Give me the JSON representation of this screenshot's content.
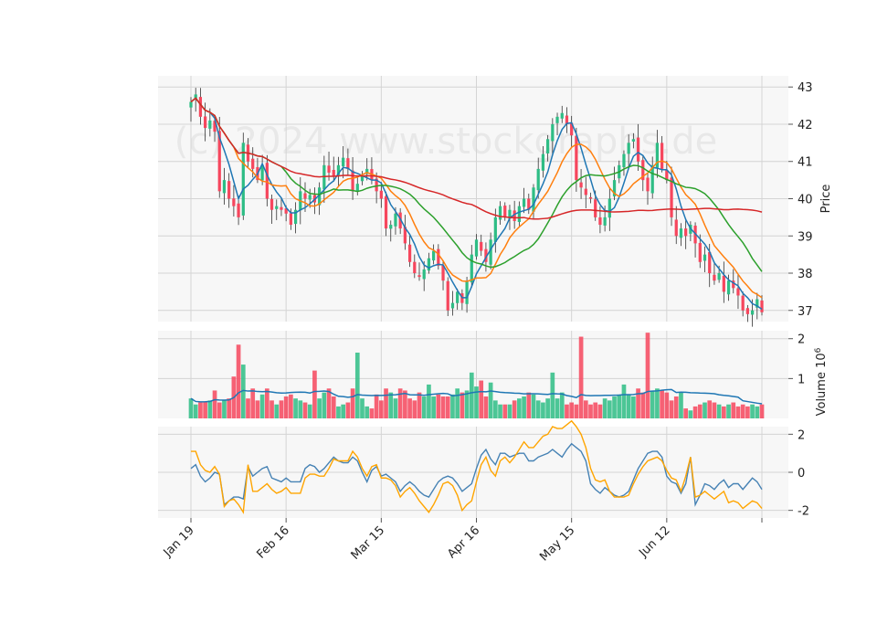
{
  "watermark": "(c) 2024 www.stockgraphs.de",
  "chart_data": [
    {
      "type": "candlestick",
      "panel": "price",
      "ylabel": "Price",
      "ylim": [
        36.7,
        43.3
      ],
      "yticks": [
        37,
        38,
        39,
        40,
        41,
        42,
        43
      ],
      "xticks": [
        {
          "label": "Jan 19",
          "index": 0
        },
        {
          "label": "Feb 16",
          "index": 20
        },
        {
          "label": "Mar 15",
          "index": 40
        },
        {
          "label": "Apr 16",
          "index": 60
        },
        {
          "label": "May 15",
          "index": 80
        },
        {
          "label": "Jun 12",
          "index": 100
        },
        {
          "label": "",
          "index": 120
        }
      ],
      "grid": true,
      "up_color": "#2ebd85",
      "down_color": "#f6465d",
      "close": [
        42.6,
        42.8,
        42.2,
        41.9,
        42.1,
        41.8,
        40.2,
        40.5,
        40.0,
        39.8,
        39.5,
        41.5,
        41.0,
        40.8,
        40.5,
        40.9,
        40.0,
        39.7,
        39.8,
        39.7,
        39.6,
        39.3,
        39.7,
        40.2,
        40.0,
        40.1,
        39.9,
        40.3,
        40.9,
        40.7,
        40.6,
        40.9,
        41.1,
        40.8,
        40.2,
        40.4,
        40.6,
        40.8,
        40.5,
        40.2,
        40.0,
        39.2,
        39.3,
        39.6,
        39.2,
        38.8,
        38.3,
        38.0,
        37.9,
        38.1,
        38.4,
        38.6,
        38.2,
        37.8,
        37.0,
        37.2,
        37.5,
        37.2,
        37.8,
        38.5,
        38.9,
        38.6,
        38.3,
        38.9,
        39.5,
        39.8,
        39.5,
        39.7,
        39.4,
        39.8,
        40.0,
        39.7,
        40.3,
        40.8,
        41.2,
        41.6,
        42.0,
        42.2,
        42.3,
        42.0,
        41.7,
        40.5,
        40.3,
        40.1,
        40.0,
        39.5,
        39.3,
        39.5,
        40.0,
        40.5,
        40.9,
        41.2,
        41.5,
        41.6,
        41.0,
        40.5,
        40.2,
        40.9,
        41.5,
        40.8,
        40.5,
        39.5,
        39.0,
        39.2,
        39.0,
        39.3,
        38.8,
        38.3,
        38.5,
        38.0,
        37.8,
        38.0,
        37.5,
        37.8,
        37.6,
        37.4,
        37.0,
        36.9,
        37.0,
        37.3,
        36.95
      ]
    },
    {
      "type": "line",
      "panel": "price",
      "series": [
        {
          "color": "#1f77b4"
        },
        {
          "color": "#ff7f0e"
        },
        {
          "color": "#2ca02c"
        },
        {
          "color": "#d62728"
        }
      ]
    },
    {
      "type": "bar",
      "panel": "volume",
      "ylabel": "Volume  10^6",
      "ylim": [
        0,
        2.2
      ],
      "yticks": [
        1,
        2
      ],
      "values": [
        0.5,
        0.35,
        0.4,
        0.42,
        0.45,
        0.7,
        0.4,
        0.45,
        0.5,
        1.05,
        1.85,
        1.35,
        0.5,
        0.75,
        0.45,
        0.6,
        0.75,
        0.45,
        0.35,
        0.45,
        0.55,
        0.6,
        0.5,
        0.45,
        0.4,
        0.35,
        1.2,
        0.5,
        0.65,
        0.75,
        0.55,
        0.3,
        0.35,
        0.4,
        0.75,
        1.65,
        0.5,
        0.3,
        0.25,
        0.6,
        0.45,
        0.75,
        0.65,
        0.5,
        0.75,
        0.7,
        0.5,
        0.45,
        0.65,
        0.55,
        0.85,
        0.55,
        0.6,
        0.55,
        0.55,
        0.6,
        0.75,
        0.65,
        0.7,
        1.15,
        0.8,
        0.95,
        0.55,
        0.9,
        0.45,
        0.35,
        0.35,
        0.35,
        0.45,
        0.5,
        0.55,
        0.65,
        0.6,
        0.45,
        0.4,
        0.5,
        1.15,
        0.5,
        0.65,
        0.35,
        0.4,
        0.35,
        2.05,
        0.45,
        0.35,
        0.4,
        0.35,
        0.5,
        0.45,
        0.55,
        0.6,
        0.85,
        0.6,
        0.55,
        0.75,
        0.65,
        2.15,
        0.7,
        0.75,
        0.7,
        0.65,
        0.45,
        0.55,
        0.65,
        0.25,
        0.2,
        0.3,
        0.35,
        0.4,
        0.45,
        0.4,
        0.35,
        0.3,
        0.35,
        0.4,
        0.3,
        0.35,
        0.3,
        0.35,
        0.3,
        0.35
      ],
      "avg_line_color": "#1f77b4"
    },
    {
      "type": "line",
      "panel": "oscillator",
      "ylim": [
        -2.4,
        2.4
      ],
      "yticks": [
        -2,
        0,
        2
      ],
      "series": [
        {
          "color": "#4682b4",
          "values": [
            0.2,
            0.4,
            -0.2,
            -0.5,
            -0.3,
            0.0,
            -0.1,
            -1.7,
            -1.5,
            -1.3,
            -1.3,
            -1.4,
            0.3,
            -0.2,
            0.0,
            0.2,
            0.3,
            -0.3,
            -0.4,
            -0.5,
            -0.3,
            -0.5,
            -0.5,
            -0.5,
            0.2,
            0.4,
            0.3,
            0.0,
            0.2,
            0.5,
            0.8,
            0.6,
            0.5,
            0.5,
            0.8,
            0.6,
            0.0,
            -0.5,
            0.1,
            0.3,
            -0.2,
            -0.1,
            -0.3,
            -0.5,
            -1.0,
            -0.7,
            -0.5,
            -0.7,
            -1.0,
            -1.2,
            -1.3,
            -0.9,
            -0.5,
            -0.3,
            -0.2,
            -0.3,
            -0.6,
            -1.0,
            -0.8,
            -0.6,
            0.2,
            0.9,
            1.2,
            0.7,
            0.4,
            1.0,
            1.0,
            0.8,
            0.9,
            1.0,
            1.0,
            0.6,
            0.6,
            0.8,
            0.9,
            1.0,
            1.2,
            1.0,
            0.8,
            1.2,
            1.5,
            1.3,
            1.1,
            0.6,
            -0.6,
            -0.9,
            -1.1,
            -0.8,
            -1.0,
            -1.2,
            -1.3,
            -1.2,
            -1.0,
            -0.4,
            0.2,
            0.6,
            1.0,
            1.1,
            1.1,
            0.8,
            -0.2,
            -0.5,
            -0.6,
            -1.1,
            -0.6,
            0.8,
            -1.7,
            -1.2,
            -0.6,
            -0.7,
            -0.9,
            -0.6,
            -0.4,
            -0.8,
            -0.6,
            -0.6,
            -0.9,
            -0.6,
            -0.3,
            -0.5,
            -0.9
          ]
        },
        {
          "color": "#ffa500",
          "values": [
            1.1,
            1.1,
            0.4,
            0.1,
            0.0,
            0.3,
            -0.1,
            -1.8,
            -1.5,
            -1.4,
            -1.7,
            -2.1,
            0.4,
            -1.0,
            -1.0,
            -0.8,
            -0.6,
            -0.9,
            -1.1,
            -1.0,
            -0.8,
            -1.1,
            -1.1,
            -1.1,
            -0.3,
            -0.1,
            -0.1,
            -0.2,
            -0.2,
            0.2,
            0.7,
            0.6,
            0.6,
            0.6,
            1.1,
            0.8,
            0.2,
            -0.2,
            0.3,
            0.4,
            -0.3,
            -0.3,
            -0.4,
            -0.7,
            -1.3,
            -1.0,
            -0.8,
            -1.1,
            -1.5,
            -1.8,
            -2.1,
            -1.7,
            -1.2,
            -0.6,
            -0.5,
            -0.7,
            -1.2,
            -2.0,
            -1.7,
            -1.5,
            -0.5,
            0.4,
            0.8,
            0.1,
            -0.2,
            0.6,
            0.8,
            0.5,
            0.8,
            1.2,
            1.6,
            1.3,
            1.3,
            1.6,
            1.9,
            2.0,
            2.4,
            2.3,
            2.3,
            2.5,
            2.7,
            2.4,
            2.0,
            1.3,
            0.2,
            -0.4,
            -0.5,
            -0.4,
            -1.0,
            -1.3,
            -1.3,
            -1.3,
            -1.2,
            -0.6,
            -0.1,
            0.3,
            0.6,
            0.7,
            0.8,
            0.6,
            0.1,
            -0.3,
            -0.4,
            -1.0,
            -0.2,
            0.8,
            -1.3,
            -1.2,
            -1.0,
            -1.2,
            -1.4,
            -1.2,
            -1.0,
            -1.6,
            -1.5,
            -1.6,
            -1.9,
            -1.7,
            -1.5,
            -1.6,
            -1.9
          ]
        }
      ]
    }
  ]
}
